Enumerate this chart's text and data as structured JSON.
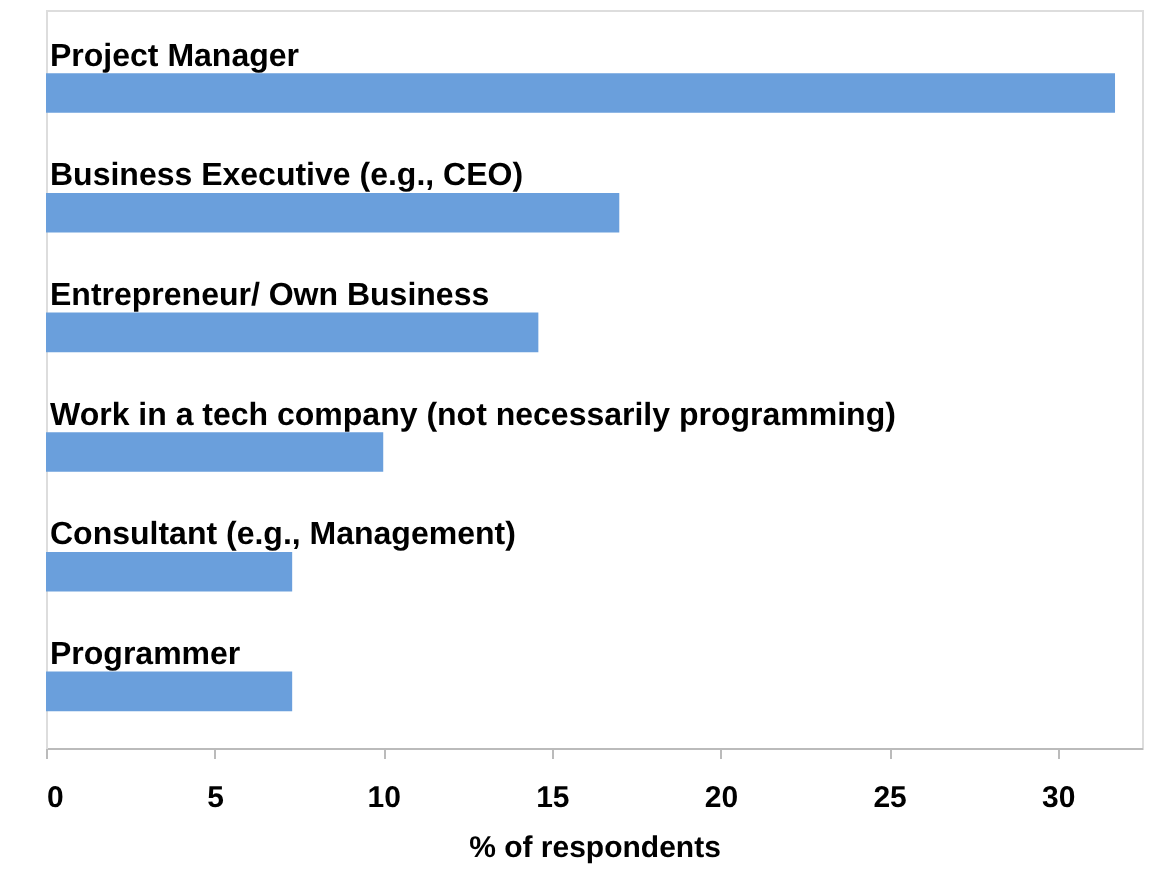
{
  "chart_data": {
    "type": "bar",
    "orientation": "horizontal",
    "xlabel": "%  of respondents",
    "categories": [
      "Project Manager",
      "Business Executive (e.g., CEO)",
      "Entrepreneur/ Own Business",
      "Work in a tech company (not necessarily programming)",
      "Consultant (e.g., Management)",
      "Programmer"
    ],
    "values": [
      31.7,
      17.0,
      14.6,
      10.0,
      7.3,
      7.3
    ],
    "color": "#6a9fdc",
    "xlim": [
      0,
      32.5
    ],
    "xticks": [
      0,
      5,
      10,
      15,
      20,
      25,
      30
    ],
    "grid": false
  }
}
